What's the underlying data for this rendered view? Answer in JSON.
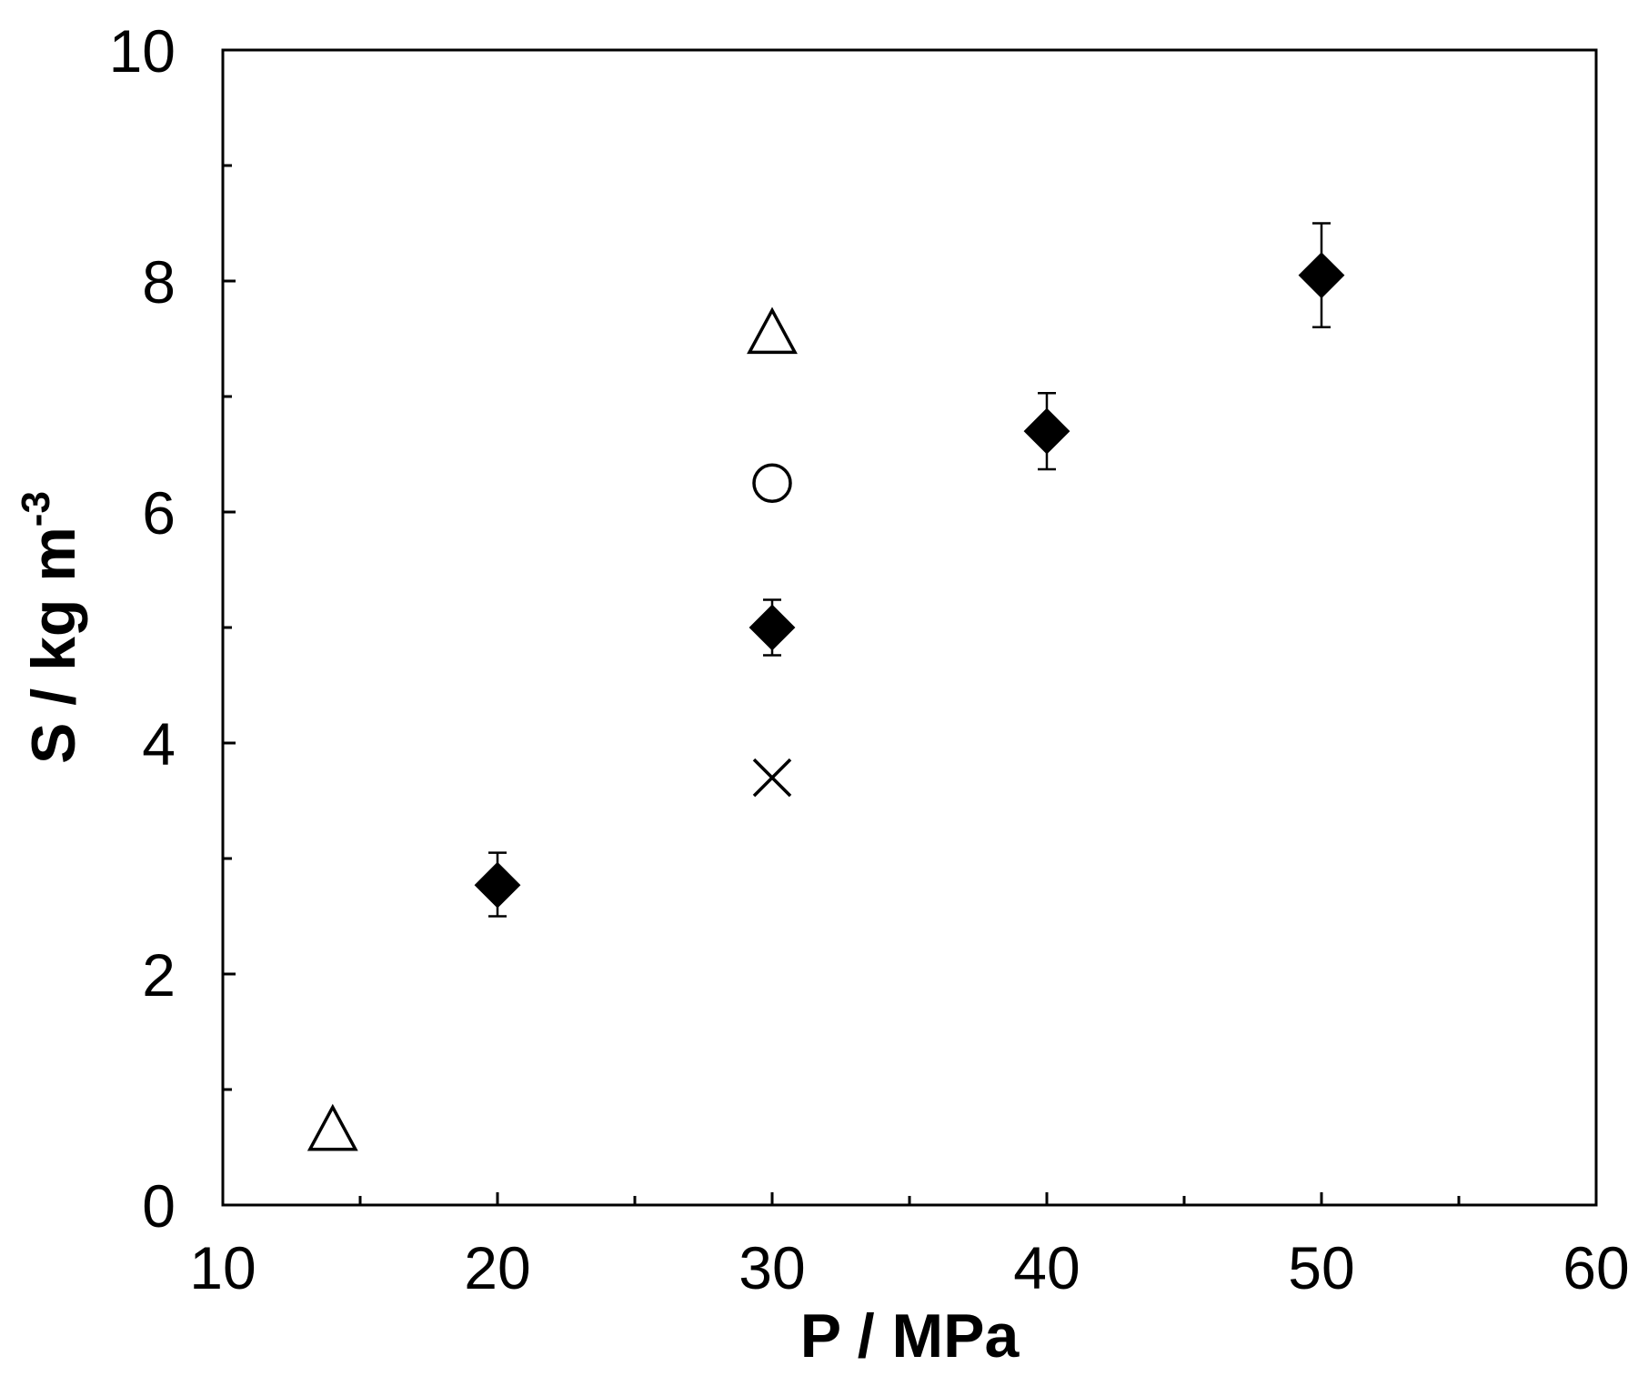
{
  "chart_data": {
    "type": "scatter",
    "title": "",
    "xlabel": "P / MPa",
    "ylabel": "S / kg m",
    "ylabel_superscript": "-3",
    "xlim": [
      10,
      60
    ],
    "ylim": [
      0,
      10
    ],
    "x_ticks": [
      10,
      20,
      30,
      40,
      50,
      60
    ],
    "y_ticks": [
      0,
      2,
      4,
      6,
      8,
      10
    ],
    "x_minor_step": 5,
    "y_minor_step": 1,
    "grid": false,
    "legend": "none",
    "series": [
      {
        "marker": "filled-diamond",
        "color": "#000000",
        "points": [
          {
            "x": 20,
            "y": 2.77,
            "err_low": 2.5,
            "err_high": 3.05
          },
          {
            "x": 30,
            "y": 5.0,
            "err_low": 4.76,
            "err_high": 5.24
          },
          {
            "x": 40,
            "y": 6.7,
            "err_low": 6.37,
            "err_high": 7.03
          },
          {
            "x": 50,
            "y": 8.05,
            "err_low": 7.6,
            "err_high": 8.5
          }
        ]
      },
      {
        "marker": "open-triangle",
        "color": "#000000",
        "points": [
          {
            "x": 14,
            "y": 0.65
          },
          {
            "x": 30,
            "y": 7.55
          }
        ]
      },
      {
        "marker": "open-circle",
        "color": "#000000",
        "points": [
          {
            "x": 30,
            "y": 6.25
          }
        ]
      },
      {
        "marker": "cross",
        "color": "#000000",
        "points": [
          {
            "x": 30,
            "y": 3.7
          }
        ]
      }
    ]
  }
}
